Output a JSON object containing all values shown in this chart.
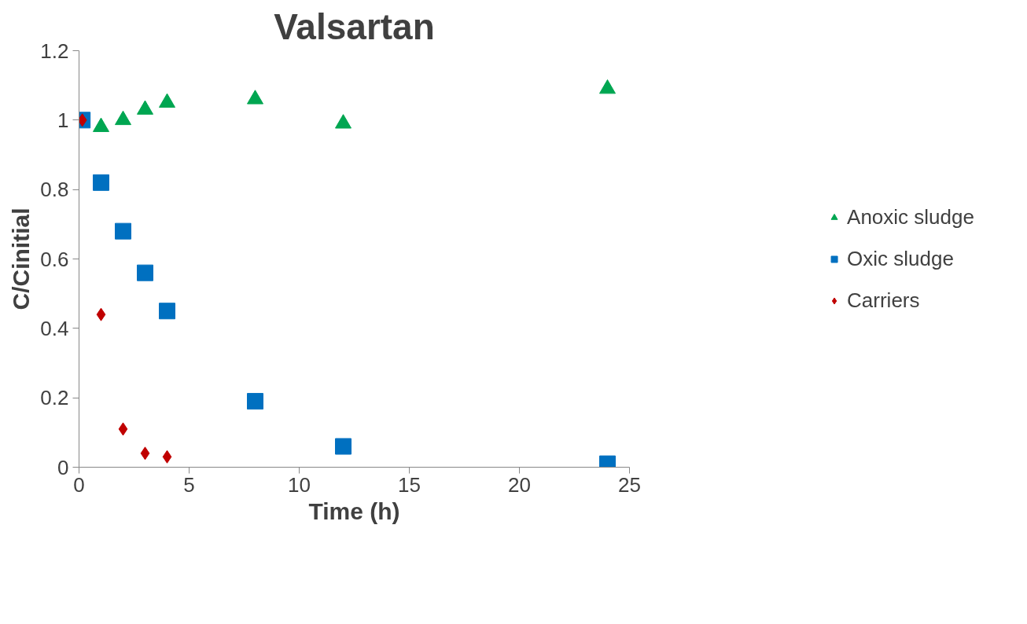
{
  "chart_data": {
    "type": "scatter",
    "title": "Valsartan",
    "xlabel": "Time (h)",
    "ylabel": "C/Cinitial",
    "xlim": [
      0,
      25
    ],
    "xticks": [
      0,
      5,
      10,
      15,
      20,
      25
    ],
    "ylim": [
      0,
      1.2
    ],
    "yticks": [
      0,
      {
        "value": 0.2,
        "label": "0.2"
      },
      {
        "value": 0.4,
        "label": "0.4"
      },
      {
        "value": 0.6,
        "label": "0.6"
      },
      {
        "value": 0.8,
        "label": "0.8"
      },
      1,
      {
        "value": 1.2,
        "label": "1.2"
      }
    ],
    "grid": false,
    "legend": "right",
    "series": [
      {
        "name": "Anoxic sludge",
        "color": "#00a651",
        "marker": "triangle",
        "x": [
          1,
          2,
          3,
          4,
          8,
          12,
          24
        ],
        "values": [
          0.98,
          1.0,
          1.03,
          1.05,
          1.06,
          0.99,
          1.09
        ]
      },
      {
        "name": "Oxic sludge",
        "color": "#0070c0",
        "marker": "square",
        "x": [
          0.15,
          1,
          2,
          3,
          4,
          8,
          12,
          24
        ],
        "values": [
          1.0,
          0.82,
          0.68,
          0.56,
          0.45,
          0.19,
          0.06,
          0.01
        ]
      },
      {
        "name": "Carriers",
        "color": "#c00000",
        "marker": "diamond",
        "x": [
          0.15,
          1,
          2,
          3,
          4
        ],
        "values": [
          1.0,
          0.44,
          0.11,
          0.04,
          0.03
        ]
      }
    ]
  }
}
